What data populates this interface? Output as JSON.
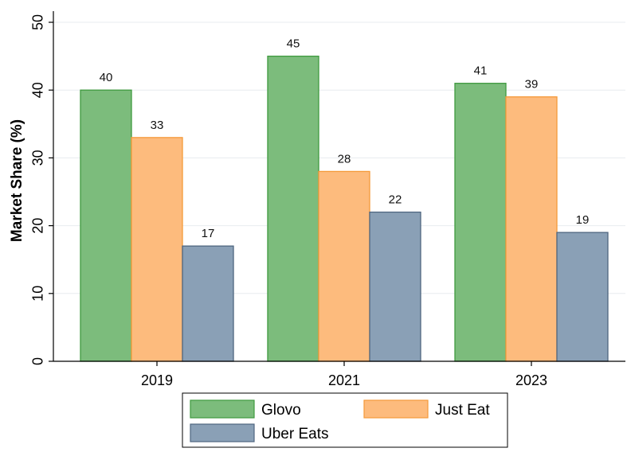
{
  "chart_data": {
    "type": "bar",
    "categories": [
      "2019",
      "2021",
      "2023"
    ],
    "series": [
      {
        "name": "Glovo",
        "values": [
          40,
          45,
          41
        ],
        "color": "#7cbc7c",
        "stroke": "#3f9a3f"
      },
      {
        "name": "Just Eat",
        "values": [
          33,
          28,
          39
        ],
        "color": "#fdbb7d",
        "stroke": "#f59a3a"
      },
      {
        "name": "Uber Eats",
        "values": [
          17,
          22,
          19
        ],
        "color": "#8aa0b6",
        "stroke": "#4f6680"
      }
    ],
    "ylabel": "Market Share (%)",
    "xlabel": "",
    "ylim": [
      0,
      50
    ],
    "yticks": [
      0,
      10,
      20,
      30,
      40,
      50
    ],
    "grid": true,
    "legend_position": "bottom",
    "data_labels": true
  }
}
